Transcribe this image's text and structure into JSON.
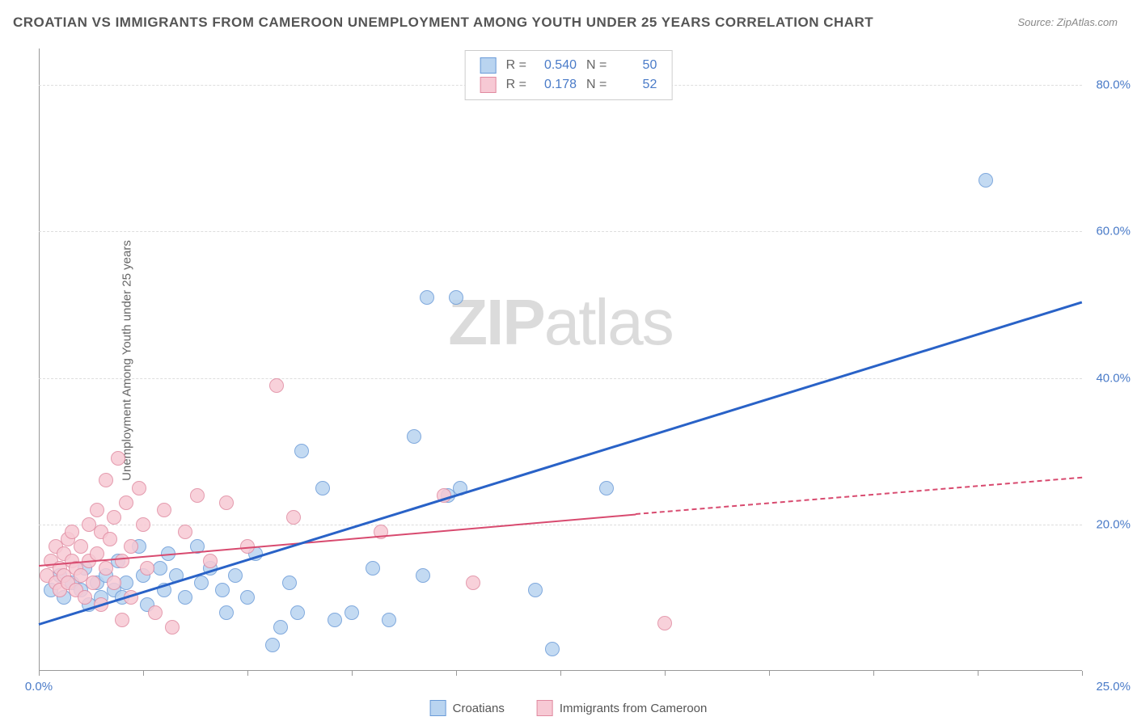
{
  "title": "CROATIAN VS IMMIGRANTS FROM CAMEROON UNEMPLOYMENT AMONG YOUTH UNDER 25 YEARS CORRELATION CHART",
  "source": "Source: ZipAtlas.com",
  "ylabel": "Unemployment Among Youth under 25 years",
  "watermark_bold": "ZIP",
  "watermark_rest": "atlas",
  "chart": {
    "type": "scatter",
    "xlim": [
      0,
      25
    ],
    "ylim": [
      0,
      85
    ],
    "xticks": [
      0,
      2.5,
      5,
      7.5,
      10,
      12.5,
      15,
      17.5,
      20,
      22.5,
      25
    ],
    "xtick_labels": {
      "0": "0.0%",
      "25": "25.0%"
    },
    "yticks": [
      20,
      40,
      60,
      80
    ],
    "ytick_labels": {
      "20": "20.0%",
      "40": "40.0%",
      "60": "60.0%",
      "80": "80.0%"
    },
    "background_color": "#ffffff",
    "grid_color": "#dddddd",
    "axis_color": "#999999",
    "label_color": "#4a7bc8",
    "series": [
      {
        "name": "Croatians",
        "fill": "#b9d4f0",
        "stroke": "#6a9bd8",
        "line_color": "#2962c7",
        "R": "0.540",
        "N": "50",
        "regression": {
          "x1": 0,
          "y1": 6.5,
          "x2": 25,
          "y2": 50.5
        },
        "points": [
          [
            0.3,
            11
          ],
          [
            0.5,
            13
          ],
          [
            0.6,
            10
          ],
          [
            0.8,
            12
          ],
          [
            1.0,
            11
          ],
          [
            1.1,
            14
          ],
          [
            1.2,
            9
          ],
          [
            1.4,
            12
          ],
          [
            1.5,
            10
          ],
          [
            1.6,
            13
          ],
          [
            1.8,
            11
          ],
          [
            1.9,
            15
          ],
          [
            2.0,
            10
          ],
          [
            2.1,
            12
          ],
          [
            2.4,
            17
          ],
          [
            2.5,
            13
          ],
          [
            2.6,
            9
          ],
          [
            2.9,
            14
          ],
          [
            3.0,
            11
          ],
          [
            3.1,
            16
          ],
          [
            3.3,
            13
          ],
          [
            3.5,
            10
          ],
          [
            3.8,
            17
          ],
          [
            3.9,
            12
          ],
          [
            4.1,
            14
          ],
          [
            4.4,
            11
          ],
          [
            4.5,
            8
          ],
          [
            4.7,
            13
          ],
          [
            5.0,
            10
          ],
          [
            5.2,
            16
          ],
          [
            5.6,
            3.5
          ],
          [
            5.8,
            6
          ],
          [
            6.0,
            12
          ],
          [
            6.2,
            8
          ],
          [
            6.3,
            30
          ],
          [
            6.8,
            25
          ],
          [
            7.1,
            7
          ],
          [
            7.5,
            8
          ],
          [
            8.0,
            14
          ],
          [
            8.4,
            7
          ],
          [
            9.0,
            32
          ],
          [
            9.2,
            13
          ],
          [
            9.3,
            51
          ],
          [
            9.8,
            24
          ],
          [
            10.0,
            51
          ],
          [
            10.1,
            25
          ],
          [
            11.9,
            11
          ],
          [
            12.3,
            3
          ],
          [
            13.6,
            25
          ],
          [
            22.7,
            67
          ]
        ]
      },
      {
        "name": "Immigrants from Cameroon",
        "fill": "#f7c9d4",
        "stroke": "#e08aa0",
        "line_color": "#d84a6f",
        "R": "0.178",
        "N": "52",
        "regression_solid": {
          "x1": 0,
          "y1": 14.5,
          "x2": 14.3,
          "y2": 21.5
        },
        "regression_dash": {
          "x1": 14.3,
          "y1": 21.5,
          "x2": 25,
          "y2": 26.5
        },
        "points": [
          [
            0.2,
            13
          ],
          [
            0.3,
            15
          ],
          [
            0.4,
            12
          ],
          [
            0.4,
            17
          ],
          [
            0.5,
            14
          ],
          [
            0.5,
            11
          ],
          [
            0.6,
            16
          ],
          [
            0.6,
            13
          ],
          [
            0.7,
            18
          ],
          [
            0.7,
            12
          ],
          [
            0.8,
            15
          ],
          [
            0.8,
            19
          ],
          [
            0.9,
            14
          ],
          [
            0.9,
            11
          ],
          [
            1.0,
            17
          ],
          [
            1.0,
            13
          ],
          [
            1.1,
            10
          ],
          [
            1.2,
            20
          ],
          [
            1.2,
            15
          ],
          [
            1.3,
            12
          ],
          [
            1.4,
            22
          ],
          [
            1.4,
            16
          ],
          [
            1.5,
            19
          ],
          [
            1.5,
            9
          ],
          [
            1.6,
            14
          ],
          [
            1.6,
            26
          ],
          [
            1.7,
            18
          ],
          [
            1.8,
            21
          ],
          [
            1.8,
            12
          ],
          [
            1.9,
            29
          ],
          [
            2.0,
            15
          ],
          [
            2.0,
            7
          ],
          [
            2.1,
            23
          ],
          [
            2.2,
            17
          ],
          [
            2.2,
            10
          ],
          [
            2.4,
            25
          ],
          [
            2.5,
            20
          ],
          [
            2.6,
            14
          ],
          [
            2.8,
            8
          ],
          [
            3.0,
            22
          ],
          [
            3.2,
            6
          ],
          [
            3.5,
            19
          ],
          [
            3.8,
            24
          ],
          [
            4.1,
            15
          ],
          [
            4.5,
            23
          ],
          [
            5.0,
            17
          ],
          [
            5.7,
            39
          ],
          [
            6.1,
            21
          ],
          [
            8.2,
            19
          ],
          [
            9.7,
            24
          ],
          [
            10.4,
            12
          ],
          [
            15.0,
            6.5
          ]
        ]
      }
    ]
  },
  "legend": {
    "series1": "Croatians",
    "series2": "Immigrants from Cameroon"
  },
  "stats_labels": {
    "R": "R =",
    "N": "N ="
  }
}
